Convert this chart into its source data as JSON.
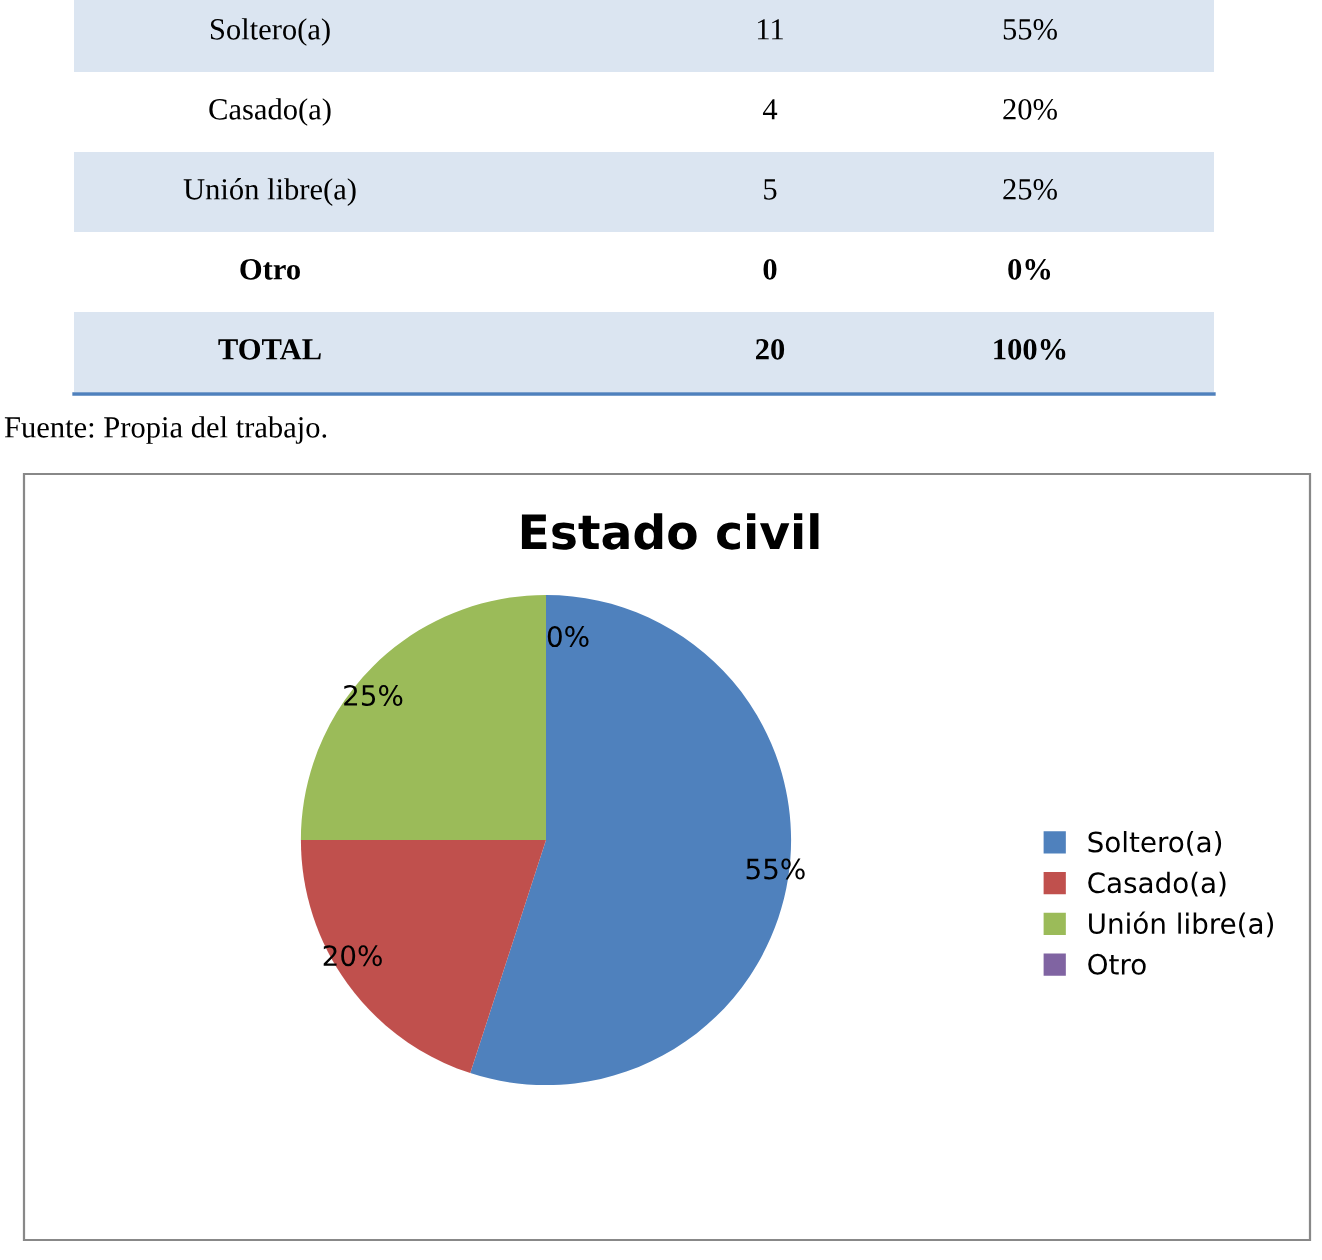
{
  "chart_data": [
    {
      "type": "other",
      "annotations": [
        "Soltero(a)",
        "11",
        "55%",
        "Casado(a)",
        "4",
        "20%",
        "Unión libre(a)",
        "5",
        "25%",
        "Otro",
        "0",
        "0%",
        "TOTAL",
        "20",
        "100%"
      ]
    },
    {
      "type": "pie",
      "title": "Estado civil",
      "categories": [
        "Soltero(a)",
        "Casado(a)",
        "Unión libre(a)",
        "Otro"
      ],
      "values": [
        55,
        20,
        25,
        0
      ],
      "colors": [
        "#4f81bd",
        "#c0504d",
        "#9bbb59",
        "#8064a2"
      ],
      "value_labels": [
        "55%",
        "20%",
        "25%",
        "0%"
      ],
      "legend": "right",
      "annotations": [
        "Fuente: Propia del trabajo."
      ]
    }
  ]
}
